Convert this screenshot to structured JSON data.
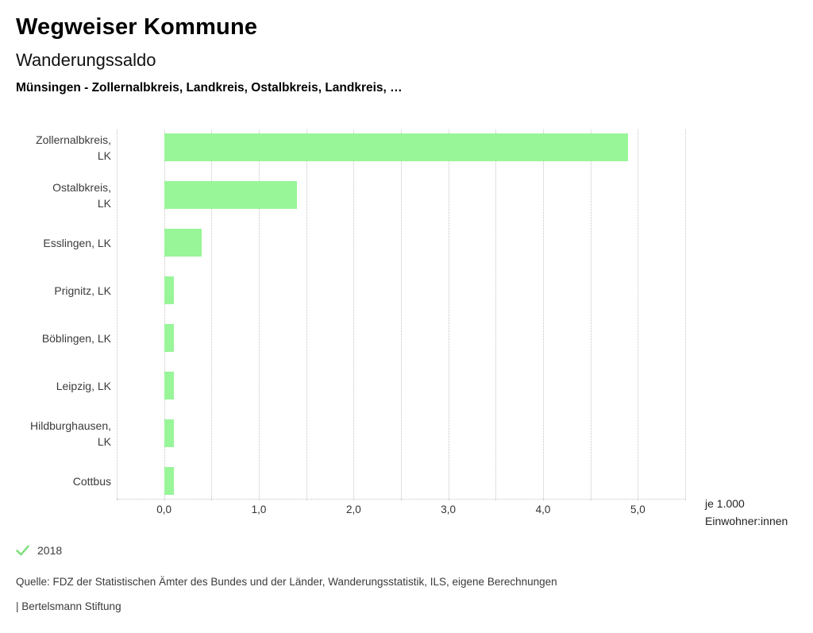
{
  "page": {
    "title": "Wegweiser Kommune",
    "subtitle": "Wanderungssaldo",
    "comparison": "Münsingen - Zollernalbkreis, Landkreis, Ostalbkreis, Landkreis, …"
  },
  "chart_data": {
    "type": "bar",
    "orientation": "horizontal",
    "title": "Wanderungssaldo",
    "categories": [
      "Zollernalbkreis, LK",
      "Ostalbkreis, LK",
      "Esslingen, LK",
      "Prignitz, LK",
      "Böblingen, LK",
      "Leipzig, LK",
      "Hildburghausen, LK",
      "Cottbus"
    ],
    "label_lines": [
      [
        "Zollernalbkreis,",
        "LK"
      ],
      [
        "Ostalbkreis,",
        "LK"
      ],
      [
        "Esslingen, LK"
      ],
      [
        "Prignitz, LK"
      ],
      [
        "Böblingen, LK"
      ],
      [
        "Leipzig, LK"
      ],
      [
        "Hildburghausen,",
        "LK"
      ],
      [
        "Cottbus"
      ]
    ],
    "values": [
      4.9,
      1.4,
      0.4,
      0.1,
      0.1,
      0.1,
      0.1,
      0.1
    ],
    "series_name": "2018",
    "xlabel": "je 1.000 Einwohner:innen",
    "xlim": [
      -0.5,
      5.5
    ],
    "x_ticks": [
      {
        "value": 0,
        "label": "0,0"
      },
      {
        "value": 1,
        "label": "1,0"
      },
      {
        "value": 2,
        "label": "2,0"
      },
      {
        "value": 3,
        "label": "3,0"
      },
      {
        "value": 4,
        "label": "4,0"
      },
      {
        "value": 5,
        "label": "5,0"
      }
    ],
    "x_gridlines": [
      -0.5,
      0,
      0.5,
      1,
      1.5,
      2,
      2.5,
      3,
      3.5,
      4,
      4.5,
      5,
      5.5
    ],
    "grid": true,
    "legend_position": "bottom-left",
    "bar_color": "#98f598"
  },
  "axis_note": {
    "line1": "je 1.000",
    "line2": "Einwohner:innen"
  },
  "legend": {
    "icon": "check-icon",
    "label": "2018",
    "check_color": "#82e182"
  },
  "footer": {
    "source": "Quelle: FDZ der Statistischen Ämter des Bundes und der Länder, Wanderungsstatistik, ILS, eigene Berechnungen",
    "branding": "| Bertelsmann Stiftung"
  }
}
